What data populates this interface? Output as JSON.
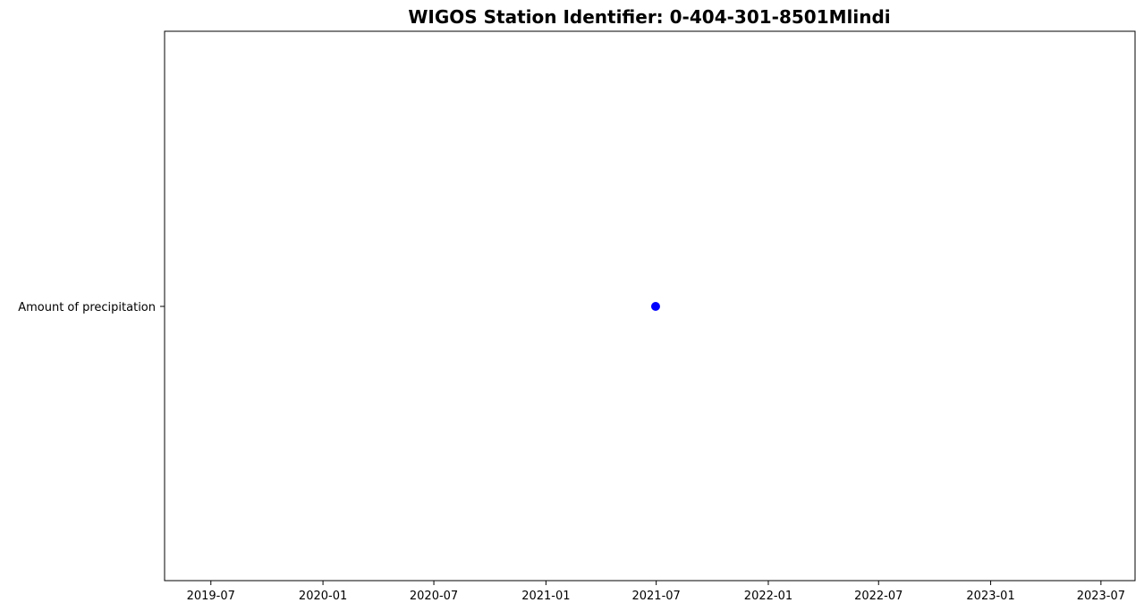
{
  "chart_data": {
    "type": "scatter",
    "title": "WIGOS Station Identifier: 0-404-301-8501Mlindi",
    "xlabel": "",
    "ylabel": "",
    "x_axis": {
      "kind": "date",
      "range": [
        "2019-04-16",
        "2023-08-26"
      ],
      "tick_labels": [
        "2019-07",
        "2020-01",
        "2020-07",
        "2021-01",
        "2021-07",
        "2022-01",
        "2022-07",
        "2023-01",
        "2023-07"
      ],
      "tick_dates": [
        "2019-07-01",
        "2020-01-01",
        "2020-07-01",
        "2021-01-01",
        "2021-07-01",
        "2022-01-01",
        "2022-07-01",
        "2023-01-01",
        "2023-07-01"
      ]
    },
    "y_axis": {
      "kind": "category",
      "categories": [
        "Amount of precipitation"
      ]
    },
    "series": [
      {
        "color": "#0000ff",
        "points": [
          {
            "x": "2021-06-30",
            "y": "Amount of precipitation"
          }
        ]
      }
    ],
    "grid": false,
    "legend": "none"
  }
}
